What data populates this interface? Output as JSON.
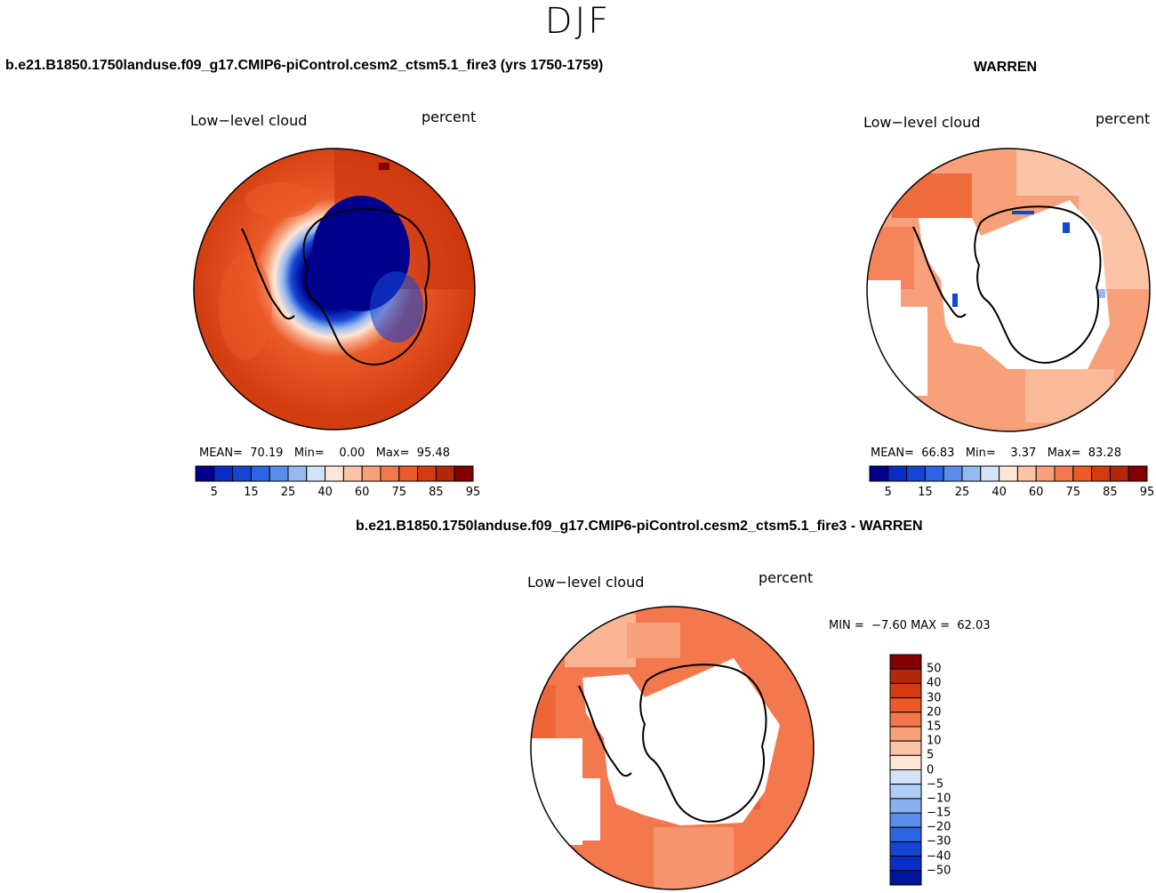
{
  "figure": {
    "title": "DJF"
  },
  "panels": {
    "model": {
      "case_title": "b.e21.B1850.1750landuse.f09_g17.CMIP6-piControl.cesm2_ctsm5.1_fire3 (yrs 1750-1759)",
      "variable": "Low−level cloud",
      "units": "percent",
      "stats": {
        "mean_label": "MEAN=",
        "mean": "70.19",
        "min_label": "Min=",
        "min": "0.00",
        "max_label": "Max=",
        "max": "95.48"
      }
    },
    "obs": {
      "case_title": "WARREN",
      "variable": "Low−level cloud",
      "units": "percent",
      "stats": {
        "mean_label": "MEAN=",
        "mean": "66.83",
        "min_label": "Min=",
        "min": "3.37",
        "max_label": "Max=",
        "max": "83.28"
      }
    },
    "diff": {
      "case_title": "b.e21.B1850.1750landuse.f09_g17.CMIP6-piControl.cesm2_ctsm5.1_fire3 - WARREN",
      "variable": "Low−level cloud",
      "units": "percent",
      "minmax": {
        "min_label": "MIN =",
        "min": "−7.60",
        "max_label": "MAX =",
        "max": "62.03"
      }
    }
  },
  "colorbars": {
    "abs": {
      "colors": [
        "#00008b",
        "#0a2dc8",
        "#1446d2",
        "#2d64e6",
        "#5a8ceb",
        "#96b9f0",
        "#d2e3f8",
        "#fde6d6",
        "#fbc4a6",
        "#f7a07a",
        "#f3784e",
        "#eb5a28",
        "#d23c10",
        "#b42808",
        "#820000"
      ],
      "labels": [
        "5",
        "15",
        "25",
        "40",
        "60",
        "75",
        "85",
        "95"
      ]
    },
    "diff": {
      "colors_top_to_bottom": [
        "#820000",
        "#b42808",
        "#d23c10",
        "#eb5a28",
        "#f3784e",
        "#f7a07a",
        "#fbc4a6",
        "#fde6d6",
        "#d2e3f8",
        "#b0cdf5",
        "#8cb0ee",
        "#5a8ceb",
        "#2d64e6",
        "#1446d2",
        "#0a2dc8",
        "#00159a"
      ],
      "labels": [
        "50",
        "40",
        "30",
        "20",
        "15",
        "10",
        "5",
        "0",
        "−5",
        "−10",
        "−15",
        "−20",
        "−30",
        "−40",
        "−50"
      ]
    }
  },
  "map_fields": {
    "model": {
      "land_color": "#00008b",
      "ocean_color": "#d23c10",
      "gradient": [
        "#00008b",
        "#1446d2",
        "#5a8ceb",
        "#96b9f0",
        "#d2e3f8",
        "#fbc4a6",
        "#f3784e",
        "#eb5a28"
      ]
    },
    "obs": {
      "ocean_color": "#f7a07a",
      "missing_color": "#ffffff"
    },
    "diff": {
      "ocean_color": "#f3784e",
      "missing_color": "#ffffff"
    }
  }
}
